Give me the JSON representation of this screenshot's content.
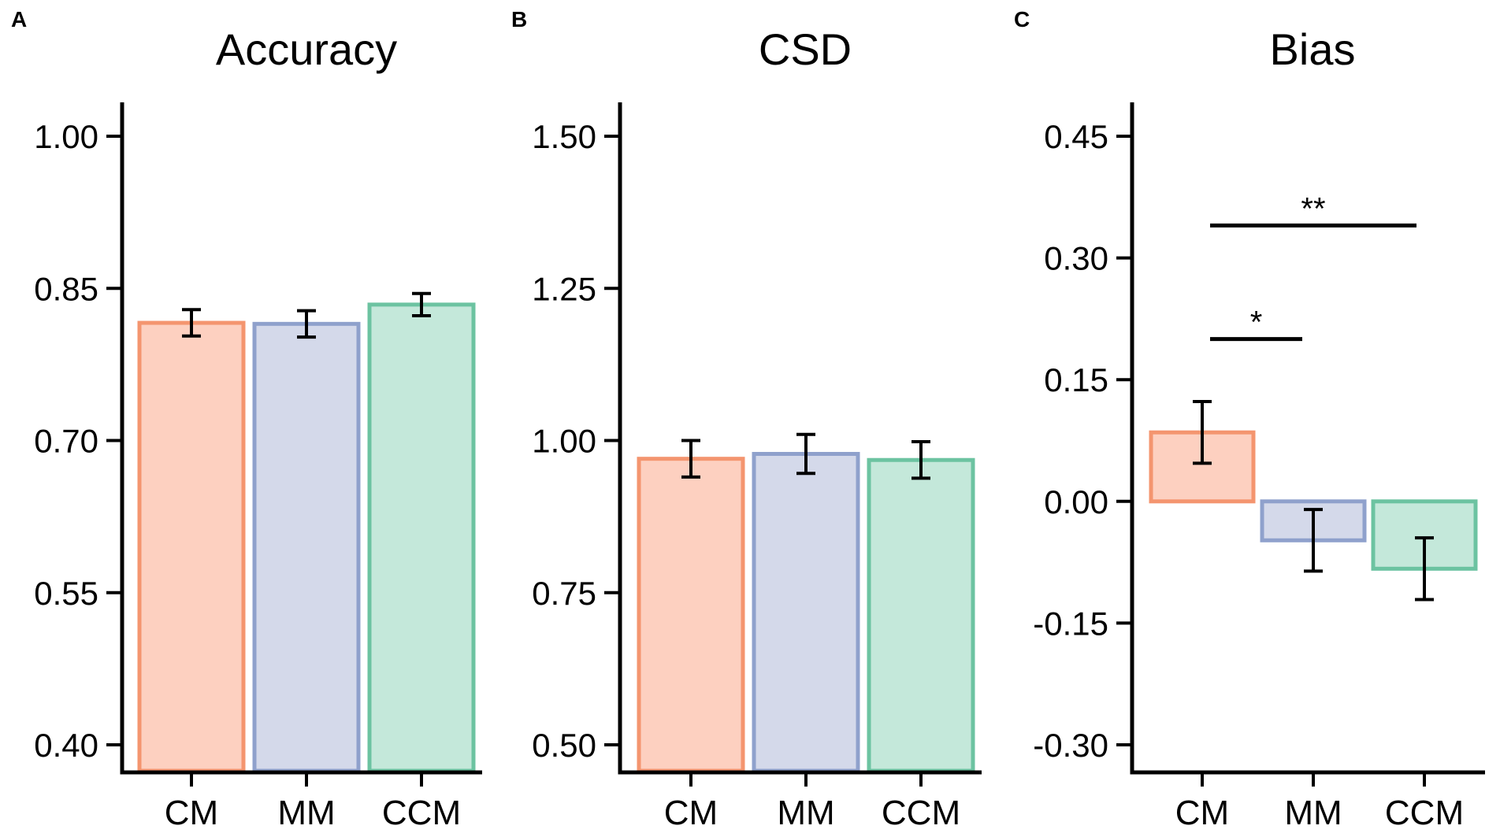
{
  "colors": {
    "CM": {
      "fill": "#fdd0c0",
      "stroke": "#f4956f"
    },
    "MM": {
      "fill": "#d4d9ea",
      "stroke": "#8fa1cc"
    },
    "CCM": {
      "fill": "#c4e8da",
      "stroke": "#6cc3a1"
    },
    "axis": "#000000"
  },
  "chart_data": [
    {
      "panel": "A",
      "type": "bar",
      "title": "Accuracy",
      "xlabel": "",
      "ylabel": "",
      "categories": [
        "CM",
        "MM",
        "CCM"
      ],
      "values": [
        0.816,
        0.815,
        0.834
      ],
      "errors": [
        0.013,
        0.013,
        0.011
      ],
      "ylim": [
        0.4,
        1.0
      ],
      "yticks": [
        0.4,
        0.55,
        0.7,
        0.85,
        1.0
      ],
      "ytick_labels": [
        "0.40",
        "0.55",
        "0.70",
        "0.85",
        "1.00"
      ],
      "significance": []
    },
    {
      "panel": "B",
      "type": "bar",
      "title": "CSD",
      "xlabel": "",
      "ylabel": "",
      "categories": [
        "CM",
        "MM",
        "CCM"
      ],
      "values": [
        0.97,
        0.978,
        0.968
      ],
      "errors": [
        0.03,
        0.032,
        0.03
      ],
      "ylim": [
        0.5,
        1.5
      ],
      "yticks": [
        0.5,
        0.75,
        1.0,
        1.25,
        1.5
      ],
      "ytick_labels": [
        "0.50",
        "0.75",
        "1.00",
        "1.25",
        "1.50"
      ],
      "significance": []
    },
    {
      "panel": "C",
      "type": "bar",
      "title": "Bias",
      "xlabel": "",
      "ylabel": "",
      "categories": [
        "CM",
        "MM",
        "CCM"
      ],
      "values": [
        0.085,
        -0.048,
        -0.083
      ],
      "errors": [
        0.038,
        0.038,
        0.038
      ],
      "ylim": [
        -0.3,
        0.45
      ],
      "yticks": [
        -0.3,
        -0.15,
        0.0,
        0.15,
        0.3,
        0.45
      ],
      "ytick_labels": [
        "-0.30",
        "-0.15",
        "0.00",
        "0.15",
        "0.30",
        "0.45"
      ],
      "significance": [
        {
          "from": "CM",
          "to": "MM",
          "y": 0.2,
          "label": "*"
        },
        {
          "from": "CM",
          "to": "CCM",
          "y": 0.34,
          "label": "**"
        }
      ]
    }
  ]
}
